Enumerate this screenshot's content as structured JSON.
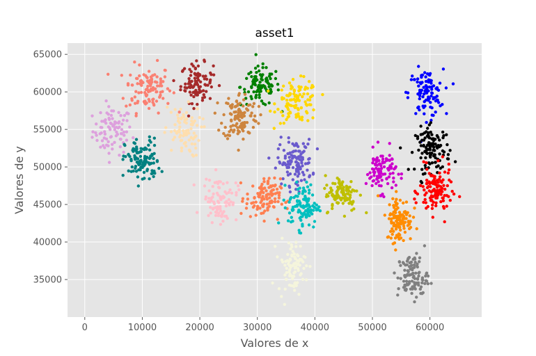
{
  "chart_data": {
    "type": "scatter",
    "title": "asset1",
    "xlabel": "Valores de x",
    "ylabel": "Valores de y",
    "xlim": [
      -3000,
      69000
    ],
    "ylim": [
      30000,
      66500
    ],
    "grid": true,
    "background": "#e5e5e5",
    "x_ticks": [
      0,
      10000,
      20000,
      30000,
      40000,
      50000,
      60000
    ],
    "y_ticks": [
      35000,
      40000,
      45000,
      50000,
      55000,
      60000,
      65000
    ],
    "x_tick_labels": [
      "0",
      "10000",
      "20000",
      "30000",
      "40000",
      "50000",
      "60000"
    ],
    "y_tick_labels": [
      "35000",
      "40000",
      "45000",
      "50000",
      "55000",
      "60000",
      "65000"
    ],
    "clusters": [
      {
        "color": "#dda0dd",
        "center": [
          4800,
          54800
        ],
        "spread": [
          1700,
          1600
        ],
        "count": 90
      },
      {
        "color": "#fa8072",
        "center": [
          11000,
          60500
        ],
        "spread": [
          2000,
          1600
        ],
        "count": 110
      },
      {
        "color": "#a52a2a",
        "center": [
          19500,
          61200
        ],
        "spread": [
          1400,
          1300
        ],
        "count": 100
      },
      {
        "color": "#008000",
        "center": [
          30500,
          60700
        ],
        "spread": [
          1700,
          1300
        ],
        "count": 100
      },
      {
        "color": "#ffd700",
        "center": [
          37000,
          58700
        ],
        "spread": [
          1800,
          1400
        ],
        "count": 110
      },
      {
        "color": "#0000ff",
        "center": [
          59300,
          59800
        ],
        "spread": [
          1500,
          1600
        ],
        "count": 100
      },
      {
        "color": "#cd853f",
        "center": [
          27000,
          56800
        ],
        "spread": [
          1500,
          1600
        ],
        "count": 120
      },
      {
        "color": "#ffdead",
        "center": [
          17000,
          54700
        ],
        "spread": [
          1600,
          1700
        ],
        "count": 80
      },
      {
        "color": "#008080",
        "center": [
          10000,
          50800
        ],
        "spread": [
          1500,
          1500
        ],
        "count": 110
      },
      {
        "color": "#6a5acd",
        "center": [
          36500,
          50600
        ],
        "spread": [
          1500,
          1500
        ],
        "count": 120
      },
      {
        "color": "#000000",
        "center": [
          60500,
          52300
        ],
        "spread": [
          1500,
          1500
        ],
        "count": 120
      },
      {
        "color": "#cc00cc",
        "center": [
          51500,
          49500
        ],
        "spread": [
          1300,
          1400
        ],
        "count": 100
      },
      {
        "color": "#ff0000",
        "center": [
          61000,
          46700
        ],
        "spread": [
          1400,
          1600
        ],
        "count": 120
      },
      {
        "color": "#ffc0cb",
        "center": [
          23500,
          45700
        ],
        "spread": [
          1500,
          1500
        ],
        "count": 90
      },
      {
        "color": "#ff7f50",
        "center": [
          31000,
          45800
        ],
        "spread": [
          1500,
          1300
        ],
        "count": 110
      },
      {
        "color": "#00bfbf",
        "center": [
          38000,
          44800
        ],
        "spread": [
          1300,
          1500
        ],
        "count": 110
      },
      {
        "color": "#bfbf00",
        "center": [
          44700,
          46500
        ],
        "spread": [
          1500,
          1200
        ],
        "count": 100
      },
      {
        "color": "#ff8c00",
        "center": [
          54700,
          43000
        ],
        "spread": [
          1100,
          1500
        ],
        "count": 110
      },
      {
        "color": "#f5f5dc",
        "center": [
          36000,
          36800
        ],
        "spread": [
          1200,
          1700
        ],
        "count": 90
      },
      {
        "color": "#808080",
        "center": [
          57000,
          35400
        ],
        "spread": [
          1300,
          1500
        ],
        "count": 110
      }
    ]
  }
}
